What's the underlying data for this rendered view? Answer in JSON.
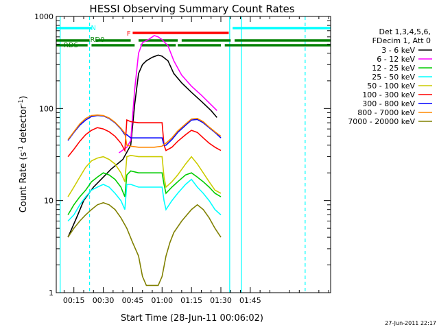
{
  "chart_data": {
    "type": "line",
    "title": "HESSI Observing Summary Count Rates",
    "xlabel": "Start Time (28-Jun-11 00:06:02)",
    "ylabel": "Count Rate (s",
    "ylabel_sup": "-1",
    "ylabel_rest": " detector",
    "ylabel_end": ")",
    "yscale": "log",
    "ylim": [
      1,
      1000
    ],
    "xlim_minutes": [
      6,
      146
    ],
    "x_ticks": [
      {
        "m": 15,
        "label": "00:15"
      },
      {
        "m": 30,
        "label": "00:30"
      },
      {
        "m": 45,
        "label": "00:45"
      },
      {
        "m": 60,
        "label": "01:00"
      },
      {
        "m": 75,
        "label": "01:15"
      },
      {
        "m": 90,
        "label": "01:30"
      },
      {
        "m": 105,
        "label": "01:45"
      }
    ],
    "y_ticks": [
      {
        "v": 1,
        "label": "1"
      },
      {
        "v": 10,
        "label": "10"
      },
      {
        "v": 100,
        "label": "100"
      },
      {
        "v": 1000,
        "label": "1000"
      }
    ],
    "legend": {
      "header": [
        "Det 1,3,4,5,6,",
        "FDecim 1, Att 0"
      ],
      "placement": "right"
    },
    "series": [
      {
        "name": "3 - 6 keV",
        "color": "#000000",
        "x": [
          12,
          14,
          17,
          20,
          25,
          30,
          34,
          40,
          44,
          46,
          48,
          50,
          52,
          55,
          58,
          60,
          63,
          66,
          70,
          75,
          80,
          85,
          88
        ],
        "y": [
          4,
          5,
          7,
          10,
          14,
          18,
          22,
          28,
          40,
          110,
          240,
          300,
          330,
          360,
          380,
          370,
          330,
          240,
          190,
          150,
          120,
          95,
          80
        ]
      },
      {
        "name": "6 - 12 keV",
        "color": "#ff00ff",
        "x": [
          38,
          42,
          44,
          46,
          48,
          50,
          53,
          56,
          58,
          60,
          63,
          66,
          70,
          75,
          80,
          85,
          88
        ],
        "y": [
          33,
          38,
          45,
          160,
          400,
          520,
          560,
          620,
          600,
          560,
          480,
          330,
          230,
          175,
          140,
          110,
          95
        ]
      },
      {
        "name": "12 - 25 keV",
        "color": "#00cc00",
        "x": [
          12,
          15,
          18,
          21,
          24,
          27,
          30,
          33,
          36,
          39,
          41,
          42,
          44,
          48,
          52,
          56,
          60,
          61,
          62,
          65,
          68,
          72,
          75,
          78,
          81,
          84,
          87,
          90
        ],
        "y": [
          7,
          9,
          11,
          13,
          16,
          18,
          20,
          19,
          17,
          14,
          11,
          19,
          21,
          20,
          20,
          20,
          20,
          15,
          12,
          14,
          16,
          19,
          20,
          18,
          16,
          14,
          12,
          11
        ]
      },
      {
        "name": "25 - 50 keV",
        "color": "#00ffff",
        "x": [
          12,
          15,
          18,
          21,
          24,
          27,
          30,
          33,
          36,
          39,
          41,
          42,
          44,
          48,
          52,
          56,
          60,
          61,
          62,
          65,
          68,
          72,
          75,
          78,
          81,
          84,
          87,
          90
        ],
        "y": [
          6,
          7,
          9,
          11,
          13,
          14,
          15,
          14,
          12,
          10,
          8,
          15,
          15,
          14,
          14,
          14,
          14,
          10,
          8,
          10,
          12,
          15,
          17,
          14,
          12,
          10,
          8,
          7
        ]
      },
      {
        "name": "50 - 100 keV",
        "color": "#cccc00",
        "x": [
          12,
          15,
          18,
          21,
          24,
          27,
          30,
          33,
          36,
          39,
          41,
          42,
          44,
          48,
          52,
          56,
          60,
          61,
          62,
          65,
          68,
          72,
          75,
          78,
          81,
          84,
          87,
          90
        ],
        "y": [
          11,
          14,
          18,
          23,
          27,
          29,
          30,
          28,
          25,
          20,
          16,
          30,
          31,
          30,
          30,
          30,
          30,
          18,
          14,
          16,
          19,
          25,
          30,
          25,
          20,
          16,
          13,
          12
        ]
      },
      {
        "name": "100 - 300 keV",
        "color": "#ff0000",
        "x": [
          12,
          15,
          18,
          21,
          24,
          27,
          30,
          33,
          36,
          39,
          41,
          42,
          44,
          48,
          52,
          56,
          60,
          61,
          62,
          65,
          68,
          72,
          75,
          78,
          81,
          84,
          87,
          90
        ],
        "y": [
          30,
          36,
          44,
          52,
          58,
          62,
          60,
          56,
          50,
          42,
          35,
          75,
          72,
          70,
          70,
          70,
          70,
          40,
          35,
          38,
          44,
          52,
          58,
          55,
          48,
          42,
          38,
          35
        ]
      },
      {
        "name": "300 - 800 keV",
        "color": "#0000ff",
        "x": [
          12,
          15,
          18,
          21,
          24,
          27,
          30,
          33,
          36,
          39,
          41,
          42,
          44,
          48,
          52,
          56,
          60,
          61,
          62,
          65,
          68,
          72,
          75,
          78,
          81,
          84,
          87,
          90
        ],
        "y": [
          45,
          55,
          66,
          75,
          82,
          84,
          83,
          78,
          70,
          60,
          52,
          52,
          48,
          48,
          48,
          48,
          48,
          40,
          40,
          46,
          55,
          66,
          75,
          76,
          70,
          62,
          55,
          48
        ]
      },
      {
        "name": "800 - 7000 keV",
        "color": "#ff8800",
        "x": [
          12,
          15,
          18,
          21,
          24,
          27,
          30,
          33,
          36,
          39,
          41,
          42,
          44,
          48,
          52,
          56,
          60,
          61,
          62,
          65,
          68,
          72,
          75,
          78,
          81,
          84,
          87,
          90
        ],
        "y": [
          46,
          56,
          68,
          78,
          84,
          85,
          84,
          79,
          71,
          61,
          54,
          40,
          39,
          38,
          38,
          38,
          39,
          41,
          42,
          48,
          57,
          68,
          77,
          78,
          72,
          63,
          56,
          50
        ]
      },
      {
        "name": "7000 - 20000 keV",
        "color": "#808000",
        "x": [
          12,
          15,
          18,
          21,
          24,
          27,
          30,
          33,
          36,
          39,
          42,
          45,
          48,
          50,
          52,
          55,
          58,
          60,
          62,
          64,
          66,
          70,
          75,
          78,
          81,
          84,
          87,
          90
        ],
        "y": [
          4,
          5,
          6,
          7,
          8,
          9,
          9.5,
          9,
          8,
          6.5,
          5,
          3.5,
          2.5,
          1.5,
          1.2,
          1.2,
          1.2,
          1.5,
          2.5,
          3.5,
          4.5,
          6,
          8,
          9,
          8,
          6.5,
          5,
          4
        ]
      }
    ],
    "annotations": {
      "bars": [
        {
          "label": "N",
          "color": "#00ffff",
          "segments": [
            [
              6,
              24
            ],
            [
              96,
              146
            ]
          ],
          "level": "top"
        },
        {
          "label": "F",
          "color": "#ff0000",
          "segments": [
            [
              45,
              94
            ]
          ],
          "level": "high"
        },
        {
          "label": "RD0",
          "color": "#008000",
          "segments": [
            [
              6,
              23
            ],
            [
              26,
              44
            ],
            [
              48,
              68
            ],
            [
              70,
              95
            ],
            [
              97,
              146
            ]
          ],
          "level": "mid"
        },
        {
          "label": "RDS",
          "color": "#008000",
          "segments": [
            [
              6,
              22
            ],
            [
              24,
              46
            ],
            [
              49,
              67
            ],
            [
              68,
              90
            ],
            [
              92,
              146
            ]
          ],
          "level": "low"
        }
      ],
      "vlines": [
        {
          "m": 8,
          "color": "#00ffff",
          "style": "solid"
        },
        {
          "m": 23,
          "color": "#00ffff",
          "style": "dashed"
        },
        {
          "m": 94.5,
          "color": "#00ffff",
          "style": "solid"
        },
        {
          "m": 100.5,
          "color": "#00ffff",
          "style": "solid"
        },
        {
          "m": 133,
          "color": "#00ffff",
          "style": "dashed"
        }
      ]
    }
  },
  "footer": {
    "timestamp": "27-Jun-2011 22:17"
  }
}
